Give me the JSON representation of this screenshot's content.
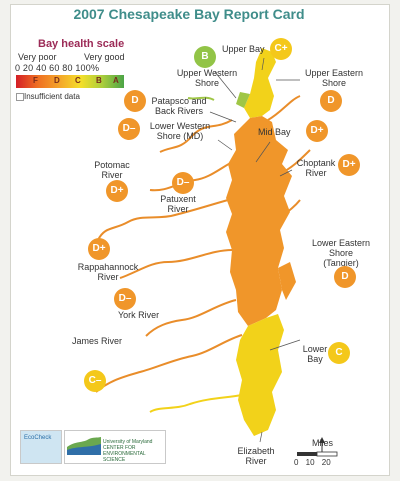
{
  "title": "2007 Chesapeake Bay Report Card",
  "legend": {
    "title": "Bay health scale",
    "very_poor": "Very poor",
    "very_good": "Very good",
    "scale_numbers": "0  20  40  60  80  100%",
    "grades": [
      "F",
      "D",
      "C",
      "B",
      "A"
    ],
    "insufficient_data": "Insufficient data",
    "colors": [
      "#d41f26",
      "#ef6f23",
      "#f4a52a",
      "#f4df2a",
      "#aacd3c",
      "#4ba447"
    ]
  },
  "regions": [
    {
      "label": "Upper Bay",
      "grade": "C+"
    },
    {
      "label": "Upper Western Shore",
      "grade": "B"
    },
    {
      "label": "Upper Eastern Shore",
      "grade": "D"
    },
    {
      "label": "Patapsco and Back Rivers",
      "grade": "D"
    },
    {
      "label": "Lower Western Shore (MD)",
      "grade": "D–"
    },
    {
      "label": "Mid Bay",
      "grade": "D+"
    },
    {
      "label": "Potomac River",
      "grade": "D+"
    },
    {
      "label": "Patuxent River",
      "grade": "D–"
    },
    {
      "label": "Choptank River",
      "grade": "D+"
    },
    {
      "label": "Rappahannock River",
      "grade": "D+"
    },
    {
      "label": "Lower Eastern Shore (Tangier)",
      "grade": "D"
    },
    {
      "label": "York River",
      "grade": "D–"
    },
    {
      "label": "James River",
      "grade": "C–"
    },
    {
      "label": "Lower Bay",
      "grade": "C"
    },
    {
      "label": "Elizabeth River",
      "grade": ""
    }
  ],
  "scale": {
    "title": "Miles",
    "numbers": "0  10  20"
  },
  "logos": {
    "left_text": "EcoCheck",
    "right_text": "University of Maryland CENTER FOR ENVIRONMENTAL SCIENCE"
  },
  "grade_colors": {
    "orange": "#f0962a",
    "yellow": "#f4c81a",
    "green": "#92c447"
  }
}
